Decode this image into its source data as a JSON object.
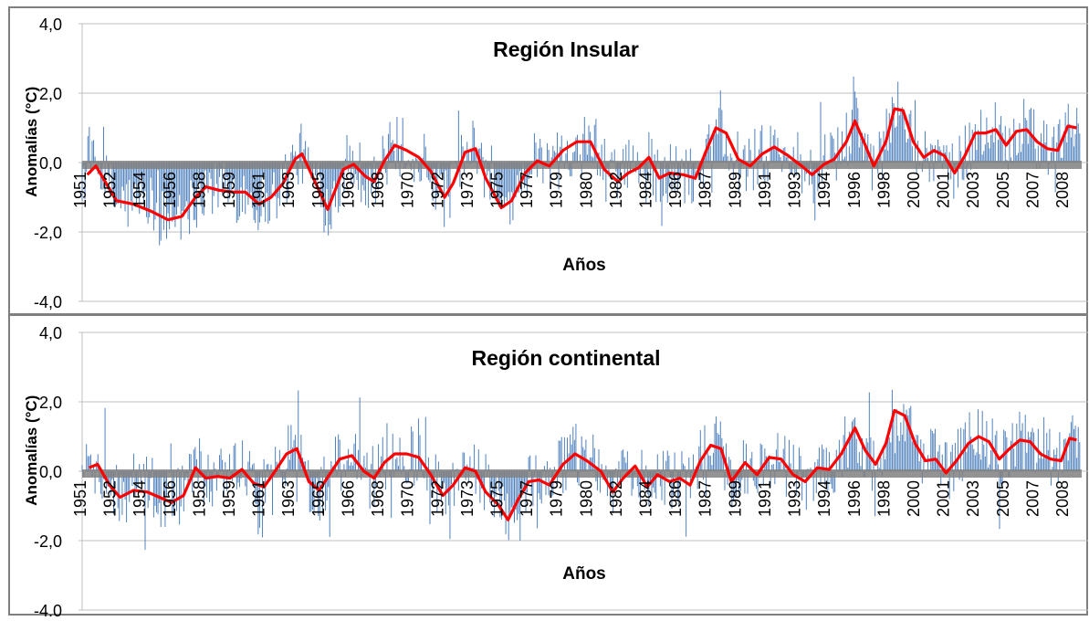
{
  "colors": {
    "bars": "#4f81bd",
    "smooth_line": "#ff0000",
    "grid": "#bfbfbf",
    "zero_band": "#808080",
    "panel_border": "#7f7f7f",
    "text": "#000000"
  },
  "chart_data": [
    {
      "type": "bar",
      "title": "Región Insular",
      "xlabel": "Años",
      "ylabel": "Anomalías (°C)",
      "ylim": [
        -4.0,
        4.0
      ],
      "y_ticks": [
        "4,0",
        "2,0",
        "0,0",
        "-2,0",
        "-4,0"
      ],
      "x_tick_labels": [
        "1951",
        "1952",
        "1954",
        "1956",
        "1958",
        "1959",
        "1961",
        "1963",
        "1965",
        "1966",
        "1968",
        "1970",
        "1972",
        "1973",
        "1975",
        "1977",
        "1979",
        "1980",
        "1982",
        "1984",
        "1986",
        "1987",
        "1989",
        "1991",
        "1993",
        "1994",
        "1996",
        "1998",
        "2000",
        "2001",
        "2003",
        "2005",
        "2007",
        "2008"
      ],
      "grid": true,
      "bar_series": "monthly anomalies",
      "smooth_series": "moving average",
      "smooth_keypoints": [
        [
          1951.3,
          -0.35
        ],
        [
          1951.8,
          -0.1
        ],
        [
          1952.4,
          -0.6
        ],
        [
          1953.0,
          -1.1
        ],
        [
          1954.0,
          -1.2
        ],
        [
          1955.0,
          -1.4
        ],
        [
          1956.0,
          -1.65
        ],
        [
          1956.8,
          -1.55
        ],
        [
          1957.6,
          -1.0
        ],
        [
          1958.2,
          -0.7
        ],
        [
          1959.0,
          -0.8
        ],
        [
          1959.8,
          -0.85
        ],
        [
          1960.5,
          -0.85
        ],
        [
          1961.3,
          -1.2
        ],
        [
          1962.0,
          -1.0
        ],
        [
          1962.7,
          -0.6
        ],
        [
          1963.4,
          0.1
        ],
        [
          1963.8,
          0.25
        ],
        [
          1964.6,
          -0.6
        ],
        [
          1965.3,
          -1.35
        ],
        [
          1966.2,
          -0.2
        ],
        [
          1966.8,
          -0.05
        ],
        [
          1967.5,
          -0.4
        ],
        [
          1968.0,
          -0.55
        ],
        [
          1968.6,
          0.05
        ],
        [
          1969.2,
          0.5
        ],
        [
          1969.9,
          0.35
        ],
        [
          1970.6,
          0.15
        ],
        [
          1971.3,
          -0.25
        ],
        [
          1972.1,
          -1.0
        ],
        [
          1972.6,
          -0.6
        ],
        [
          1973.3,
          0.3
        ],
        [
          1973.9,
          0.4
        ],
        [
          1974.5,
          -0.45
        ],
        [
          1975.4,
          -1.3
        ],
        [
          1976.0,
          -1.1
        ],
        [
          1976.8,
          -0.3
        ],
        [
          1977.5,
          0.05
        ],
        [
          1978.2,
          -0.1
        ],
        [
          1979.0,
          0.35
        ],
        [
          1979.8,
          0.6
        ],
        [
          1980.6,
          0.6
        ],
        [
          1981.4,
          -0.2
        ],
        [
          1982.2,
          -0.55
        ],
        [
          1982.8,
          -0.3
        ],
        [
          1983.4,
          -0.15
        ],
        [
          1984.0,
          0.15
        ],
        [
          1984.6,
          -0.45
        ],
        [
          1985.2,
          -0.3
        ],
        [
          1986.0,
          -0.35
        ],
        [
          1986.7,
          -0.45
        ],
        [
          1987.3,
          0.3
        ],
        [
          1987.9,
          1.0
        ],
        [
          1988.5,
          0.85
        ],
        [
          1989.2,
          0.1
        ],
        [
          1989.9,
          -0.1
        ],
        [
          1990.6,
          0.25
        ],
        [
          1991.3,
          0.45
        ],
        [
          1992.1,
          0.2
        ],
        [
          1992.9,
          -0.1
        ],
        [
          1993.5,
          -0.35
        ],
        [
          1994.2,
          -0.05
        ],
        [
          1994.8,
          0.1
        ],
        [
          1995.5,
          0.6
        ],
        [
          1996.0,
          1.2
        ],
        [
          1996.6,
          0.5
        ],
        [
          1997.1,
          -0.1
        ],
        [
          1997.8,
          0.6
        ],
        [
          1998.3,
          1.55
        ],
        [
          1998.8,
          1.5
        ],
        [
          1999.4,
          0.6
        ],
        [
          2000.0,
          0.15
        ],
        [
          2000.6,
          0.35
        ],
        [
          2001.2,
          0.2
        ],
        [
          2001.8,
          -0.3
        ],
        [
          2002.4,
          0.2
        ],
        [
          2003.0,
          0.85
        ],
        [
          2003.6,
          0.85
        ],
        [
          2004.2,
          0.95
        ],
        [
          2004.8,
          0.5
        ],
        [
          2005.4,
          0.9
        ],
        [
          2006.0,
          0.95
        ],
        [
          2006.6,
          0.6
        ],
        [
          2007.2,
          0.4
        ],
        [
          2007.8,
          0.35
        ],
        [
          2008.4,
          1.05
        ],
        [
          2008.9,
          1.0
        ]
      ]
    },
    {
      "type": "bar",
      "title": "Región continental",
      "xlabel": "Años",
      "ylabel": "Anomalías (°C)",
      "ylim": [
        -4.0,
        4.0
      ],
      "y_ticks": [
        "4,0",
        "2,0",
        "0,0",
        "-2,0",
        "-4,0"
      ],
      "x_tick_labels": [
        "1951",
        "1952",
        "1954",
        "1956",
        "1958",
        "1959",
        "1961",
        "1963",
        "1965",
        "1966",
        "1968",
        "1970",
        "1972",
        "1973",
        "1975",
        "1977",
        "1979",
        "1980",
        "1982",
        "1984",
        "1986",
        "1987",
        "1989",
        "1991",
        "1993",
        "1994",
        "1996",
        "1998",
        "2000",
        "2001",
        "2003",
        "2005",
        "2007",
        "2008"
      ],
      "grid": true,
      "bar_series": "monthly anomalies",
      "smooth_series": "moving average",
      "smooth_keypoints": [
        [
          1951.4,
          0.1
        ],
        [
          1951.9,
          0.2
        ],
        [
          1952.6,
          -0.4
        ],
        [
          1953.2,
          -0.75
        ],
        [
          1954.0,
          -0.55
        ],
        [
          1954.8,
          -0.6
        ],
        [
          1955.5,
          -0.75
        ],
        [
          1956.2,
          -0.9
        ],
        [
          1956.9,
          -0.7
        ],
        [
          1957.6,
          0.1
        ],
        [
          1958.2,
          -0.2
        ],
        [
          1958.9,
          -0.15
        ],
        [
          1959.6,
          -0.2
        ],
        [
          1960.3,
          0.05
        ],
        [
          1961.0,
          -0.35
        ],
        [
          1961.6,
          -0.45
        ],
        [
          1962.3,
          0.05
        ],
        [
          1962.9,
          0.5
        ],
        [
          1963.5,
          0.65
        ],
        [
          1964.2,
          -0.3
        ],
        [
          1964.8,
          -0.55
        ],
        [
          1965.4,
          -0.1
        ],
        [
          1966.0,
          0.35
        ],
        [
          1966.7,
          0.45
        ],
        [
          1967.4,
          0.0
        ],
        [
          1968.0,
          -0.2
        ],
        [
          1968.6,
          0.25
        ],
        [
          1969.2,
          0.5
        ],
        [
          1969.9,
          0.5
        ],
        [
          1970.6,
          0.4
        ],
        [
          1971.3,
          -0.1
        ],
        [
          1972.0,
          -0.7
        ],
        [
          1972.6,
          -0.4
        ],
        [
          1973.3,
          0.1
        ],
        [
          1973.9,
          0.0
        ],
        [
          1974.5,
          -0.6
        ],
        [
          1975.2,
          -0.95
        ],
        [
          1975.8,
          -1.4
        ],
        [
          1976.4,
          -0.8
        ],
        [
          1977.0,
          -0.3
        ],
        [
          1977.6,
          -0.25
        ],
        [
          1978.2,
          -0.4
        ],
        [
          1979.0,
          0.2
        ],
        [
          1979.7,
          0.5
        ],
        [
          1980.4,
          0.3
        ],
        [
          1981.2,
          0.0
        ],
        [
          1981.9,
          -0.6
        ],
        [
          1982.5,
          -0.2
        ],
        [
          1983.2,
          0.15
        ],
        [
          1983.9,
          -0.45
        ],
        [
          1984.5,
          -0.1
        ],
        [
          1985.2,
          -0.3
        ],
        [
          1985.8,
          -0.2
        ],
        [
          1986.4,
          -0.4
        ],
        [
          1987.0,
          0.3
        ],
        [
          1987.6,
          0.75
        ],
        [
          1988.2,
          0.65
        ],
        [
          1988.8,
          -0.3
        ],
        [
          1989.6,
          0.25
        ],
        [
          1990.3,
          -0.1
        ],
        [
          1991.0,
          0.4
        ],
        [
          1991.7,
          0.35
        ],
        [
          1992.4,
          -0.1
        ],
        [
          1993.1,
          -0.3
        ],
        [
          1993.8,
          0.1
        ],
        [
          1994.5,
          0.05
        ],
        [
          1995.2,
          0.5
        ],
        [
          1996.0,
          1.25
        ],
        [
          1996.6,
          0.6
        ],
        [
          1997.2,
          0.2
        ],
        [
          1997.8,
          0.8
        ],
        [
          1998.3,
          1.75
        ],
        [
          1998.9,
          1.6
        ],
        [
          1999.5,
          0.8
        ],
        [
          2000.1,
          0.3
        ],
        [
          2000.7,
          0.35
        ],
        [
          2001.3,
          -0.05
        ],
        [
          2001.9,
          0.3
        ],
        [
          2002.6,
          0.8
        ],
        [
          2003.2,
          1.0
        ],
        [
          2003.8,
          0.85
        ],
        [
          2004.4,
          0.35
        ],
        [
          2005.0,
          0.65
        ],
        [
          2005.6,
          0.9
        ],
        [
          2006.2,
          0.85
        ],
        [
          2006.8,
          0.5
        ],
        [
          2007.4,
          0.35
        ],
        [
          2008.0,
          0.3
        ],
        [
          2008.5,
          0.95
        ],
        [
          2008.9,
          0.9
        ]
      ]
    }
  ]
}
